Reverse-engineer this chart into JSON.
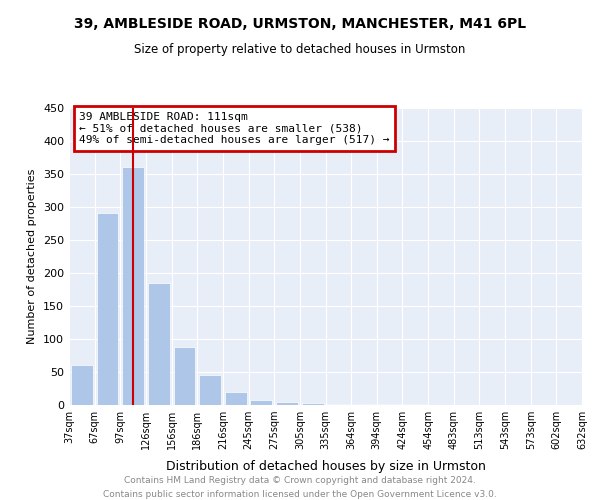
{
  "title": "39, AMBLESIDE ROAD, URMSTON, MANCHESTER, M41 6PL",
  "subtitle": "Size of property relative to detached houses in Urmston",
  "xlabel": "Distribution of detached houses by size in Urmston",
  "ylabel": "Number of detached properties",
  "footer_line1": "Contains HM Land Registry data © Crown copyright and database right 2024.",
  "footer_line2": "Contains public sector information licensed under the Open Government Licence v3.0.",
  "bar_color": "#aec6e8",
  "annotation_box_edgecolor": "#cc0000",
  "vline_color": "#cc0000",
  "annotation_line1": "39 AMBLESIDE ROAD: 111sqm",
  "annotation_line2": "← 51% of detached houses are smaller (538)",
  "annotation_line3": "49% of semi-detached houses are larger (517) →",
  "tick_labels": [
    "37sqm",
    "67sqm",
    "97sqm",
    "126sqm",
    "156sqm",
    "186sqm",
    "216sqm",
    "245sqm",
    "275sqm",
    "305sqm",
    "335sqm",
    "364sqm",
    "394sqm",
    "424sqm",
    "454sqm",
    "483sqm",
    "513sqm",
    "543sqm",
    "573sqm",
    "602sqm",
    "632sqm"
  ],
  "values": [
    60,
    290,
    360,
    185,
    88,
    45,
    20,
    8,
    5,
    3,
    2,
    1,
    1,
    1,
    0,
    0,
    0,
    0,
    0,
    0
  ],
  "vline_position": 2.0,
  "ylim": [
    0,
    450
  ],
  "yticks": [
    0,
    50,
    100,
    150,
    200,
    250,
    300,
    350,
    400,
    450
  ],
  "bg_color": "#e8eef8"
}
